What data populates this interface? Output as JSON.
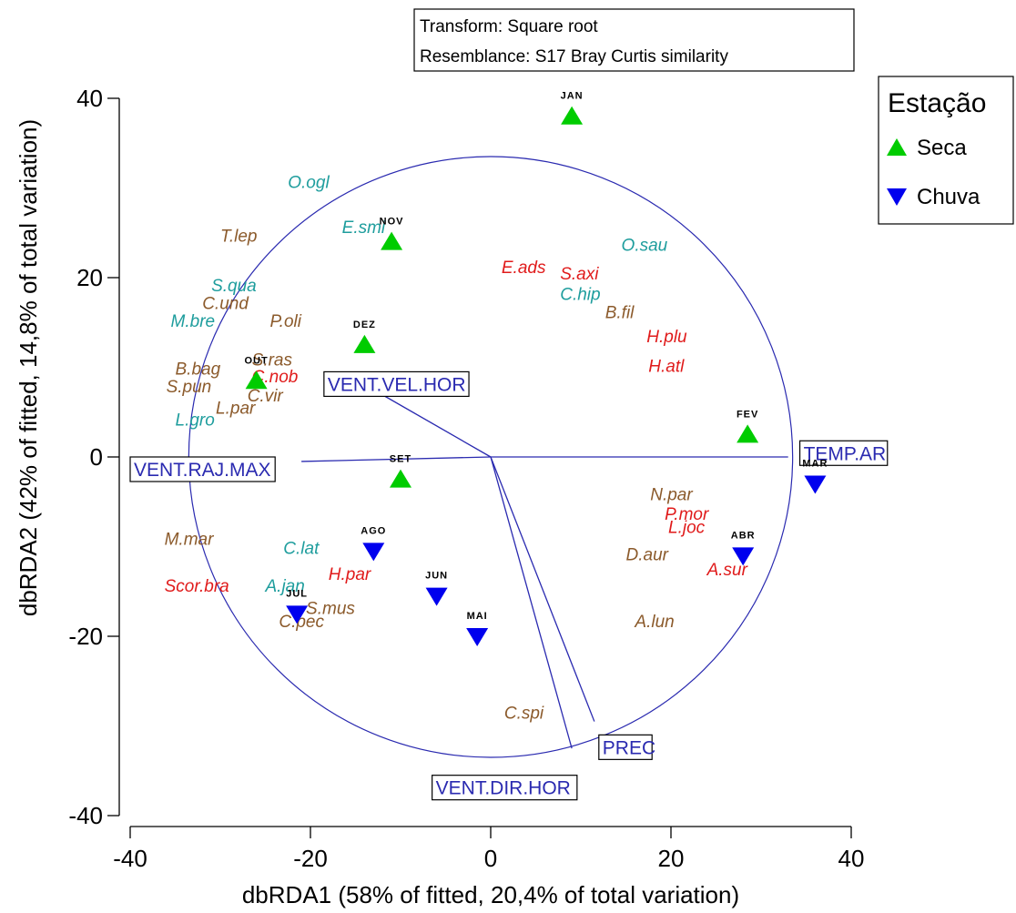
{
  "chart_data": {
    "type": "scatter",
    "title": "",
    "transform_box": [
      "Transform: Square root",
      "Resemblance: S17 Bray Curtis similarity"
    ],
    "xlabel": "dbRDA1 (58% of fitted, 20,4% of total variation)",
    "ylabel": "dbRDA2 (42% of fitted, 14,8% of total variation)",
    "xlim": [
      -40,
      40
    ],
    "ylim": [
      -40,
      40
    ],
    "xticks": [
      "-40",
      "-20",
      "0",
      "20",
      "40"
    ],
    "yticks": [
      "40",
      "20",
      "0",
      "-20",
      "-40"
    ],
    "circle_radius": 33.5,
    "legend": {
      "title": "Estação",
      "position": "top-right",
      "entries": [
        {
          "name": "Seca",
          "marker": "triangle-up",
          "color": "#00cc00"
        },
        {
          "name": "Chuva",
          "marker": "triangle-down",
          "color": "#0000ee"
        }
      ]
    },
    "series": [
      {
        "name": "Seca",
        "marker": "triangle-up",
        "color": "#00cc00",
        "points": [
          {
            "label": "JAN",
            "x": 9,
            "y": 38
          },
          {
            "label": "NOV",
            "x": -11,
            "y": 24
          },
          {
            "label": "DEZ",
            "x": -14,
            "y": 12.5
          },
          {
            "label": "OUT",
            "x": -26,
            "y": 8.5
          },
          {
            "label": "FEV",
            "x": 28.5,
            "y": 2.5
          },
          {
            "label": "SET",
            "x": -10,
            "y": -2.5
          }
        ]
      },
      {
        "name": "Chuva",
        "marker": "triangle-down",
        "color": "#0000ee",
        "points": [
          {
            "label": "MAR",
            "x": 36,
            "y": -3
          },
          {
            "label": "ABR",
            "x": 28,
            "y": -11
          },
          {
            "label": "AGO",
            "x": -13,
            "y": -10.5
          },
          {
            "label": "JUL",
            "x": -21.5,
            "y": -17.5
          },
          {
            "label": "JUN",
            "x": -6,
            "y": -15.5
          },
          {
            "label": "MAI",
            "x": -1.5,
            "y": -20
          }
        ]
      }
    ],
    "vectors": [
      {
        "label": "VENT.VEL.HOR",
        "x": -13,
        "y": 7.5,
        "label_x": -18.5,
        "label_y": 9.5
      },
      {
        "label": "VENT.RAJ.MAX",
        "x": -21,
        "y": -0.5,
        "label_x": -40,
        "label_y": 0
      },
      {
        "label": "TEMP.AR",
        "x": 33,
        "y": 0,
        "label_x": 34.3,
        "label_y": 1.8
      },
      {
        "label": "PREC",
        "x": 11.5,
        "y": -29.5,
        "label_x": 12,
        "label_y": -31
      },
      {
        "label": "VENT.DIR.HOR",
        "x": 9,
        "y": -32.5,
        "label_x": -6.5,
        "label_y": -35.5
      }
    ],
    "species_colors": {
      "teal": "#1e9d9d",
      "brown": "#8b5a2b",
      "red": "#e01b1b"
    },
    "species": [
      {
        "label": "O.ogl",
        "x": -22.5,
        "y": 30,
        "color": "teal"
      },
      {
        "label": "E.smi",
        "x": -16.5,
        "y": 25,
        "color": "teal"
      },
      {
        "label": "T.lep",
        "x": -30,
        "y": 24,
        "color": "brown"
      },
      {
        "label": "O.sau",
        "x": 14.5,
        "y": 23,
        "color": "teal"
      },
      {
        "label": "E.ads",
        "x": 1.2,
        "y": 20.5,
        "color": "red"
      },
      {
        "label": "S.axi",
        "x": 7.7,
        "y": 19.8,
        "color": "red"
      },
      {
        "label": "S.qua",
        "x": -31,
        "y": 18.5,
        "color": "teal"
      },
      {
        "label": "C.hip",
        "x": 7.7,
        "y": 17.5,
        "color": "teal"
      },
      {
        "label": "C.und",
        "x": -32,
        "y": 16.5,
        "color": "brown"
      },
      {
        "label": "B.fil",
        "x": 12.7,
        "y": 15.5,
        "color": "brown"
      },
      {
        "label": "M.bre",
        "x": -35.5,
        "y": 14.5,
        "color": "teal"
      },
      {
        "label": "P.oli",
        "x": -24.5,
        "y": 14.5,
        "color": "brown"
      },
      {
        "label": "H.plu",
        "x": 17.3,
        "y": 12.8,
        "color": "red"
      },
      {
        "label": "S.ras",
        "x": -26.5,
        "y": 10.2,
        "color": "brown"
      },
      {
        "label": "B.bag",
        "x": -35,
        "y": 9.2,
        "color": "brown"
      },
      {
        "label": "H.atl",
        "x": 17.5,
        "y": 9.5,
        "color": "red"
      },
      {
        "label": "C.nob",
        "x": -26.5,
        "y": 8.3,
        "color": "red"
      },
      {
        "label": "S.pun",
        "x": -36,
        "y": 7.2,
        "color": "brown"
      },
      {
        "label": "C.vir",
        "x": -27,
        "y": 6.2,
        "color": "brown"
      },
      {
        "label": "L.par",
        "x": -30.5,
        "y": 4.8,
        "color": "brown"
      },
      {
        "label": "L.gro",
        "x": -35,
        "y": 3.5,
        "color": "teal"
      },
      {
        "label": "N.par",
        "x": 17.7,
        "y": -4.8,
        "color": "brown"
      },
      {
        "label": "P.mor",
        "x": 19.3,
        "y": -7,
        "color": "red"
      },
      {
        "label": "L.joc",
        "x": 19.7,
        "y": -8.5,
        "color": "red"
      },
      {
        "label": "M.mar",
        "x": -36.2,
        "y": -9.8,
        "color": "brown"
      },
      {
        "label": "C.lat",
        "x": -23,
        "y": -10.8,
        "color": "teal"
      },
      {
        "label": "D.aur",
        "x": 15,
        "y": -11.5,
        "color": "brown"
      },
      {
        "label": "A.sur",
        "x": 24,
        "y": -13.2,
        "color": "red"
      },
      {
        "label": "Scor.bra",
        "x": -36.2,
        "y": -15,
        "color": "red"
      },
      {
        "label": "A.jan",
        "x": -25,
        "y": -15,
        "color": "teal"
      },
      {
        "label": "H.par",
        "x": -18,
        "y": -13.7,
        "color": "red"
      },
      {
        "label": "S.mus",
        "x": -20.5,
        "y": -17.5,
        "color": "brown"
      },
      {
        "label": "C.pec",
        "x": -23.5,
        "y": -19,
        "color": "brown"
      },
      {
        "label": "A.lun",
        "x": 16,
        "y": -19,
        "color": "brown"
      },
      {
        "label": "C.spi",
        "x": 1.5,
        "y": -29.2,
        "color": "brown"
      }
    ]
  }
}
